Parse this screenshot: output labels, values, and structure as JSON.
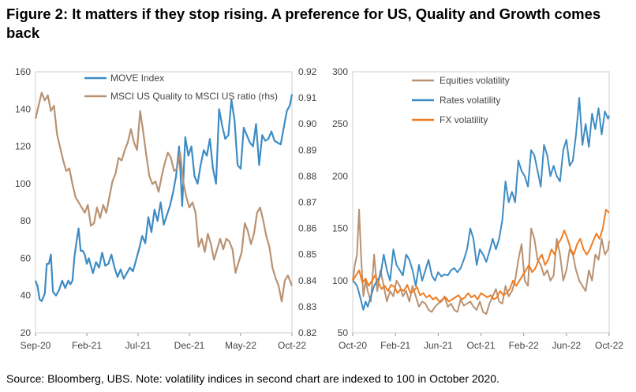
{
  "title": "Figure 2: It matters if they stop rising. A preference for US, Quality and Growth comes back",
  "source": "Source: Bloomberg, UBS. Note: volatility indices in second chart are indexed to 100 in October 2020.",
  "chart_data": [
    {
      "type": "line",
      "x_tick_labels": [
        "Sep-20",
        "Feb-21",
        "Jul-21",
        "Dec-21",
        "May-22",
        "Oct-22"
      ],
      "y_left": {
        "ylim": [
          20,
          160
        ],
        "ticks": [
          "20",
          "40",
          "60",
          "80",
          "100",
          "120",
          "140",
          "160"
        ]
      },
      "y_right": {
        "ylim": [
          0.82,
          0.92
        ],
        "ticks": [
          "0.82",
          "0.83",
          "0.84",
          "0.85",
          "0.86",
          "0.87",
          "0.88",
          "0.89",
          "0.90",
          "0.91",
          "0.92"
        ]
      },
      "legend_position": "top-left",
      "series": [
        {
          "name": "MOVE Index",
          "axis": "left",
          "color": "#3d8cc4",
          "x": [
            0,
            0.2,
            0.4,
            0.6,
            0.9,
            1.1,
            1.3,
            1.5,
            1.7,
            2.0,
            2.3,
            2.6,
            2.9,
            3.2,
            3.4,
            3.6,
            3.8,
            4.0,
            4.2,
            4.4,
            4.6,
            4.8,
            5.0,
            5.2,
            5.4,
            5.6,
            5.9,
            6.2,
            6.5,
            6.8,
            7.1,
            7.4,
            7.7,
            8.0,
            8.3,
            8.6,
            8.9,
            9.2,
            9.5,
            9.8,
            10.1,
            10.4,
            10.7,
            11.0,
            11.3,
            11.6,
            11.9,
            12.2,
            12.5,
            12.8,
            13.1,
            13.4,
            13.7,
            14.0,
            14.3,
            14.6,
            14.9,
            15.2,
            15.5,
            15.8,
            16.1,
            16.4,
            16.7,
            17.0,
            17.3,
            17.6,
            17.9,
            18.2,
            18.5,
            18.8,
            19.1,
            19.4,
            19.7,
            20.0,
            20.3,
            20.6,
            20.9,
            21.2,
            21.5,
            21.8,
            22.1,
            22.4,
            22.7,
            23.0,
            23.3,
            23.6,
            23.9,
            24.2,
            24.5,
            24.8,
            25.0
          ],
          "values": [
            48,
            45,
            38,
            37,
            41,
            57,
            57,
            62,
            42,
            40,
            43,
            48,
            44,
            48,
            46,
            48,
            61,
            69,
            76,
            64,
            64,
            62,
            57,
            60,
            56,
            52,
            58,
            55,
            63,
            56,
            57,
            62,
            55,
            50,
            54,
            49,
            52,
            55,
            53,
            59,
            65,
            72,
            68,
            82,
            74,
            86,
            80,
            90,
            78,
            83,
            88,
            95,
            104,
            120,
            88,
            125,
            115,
            120,
            104,
            100,
            110,
            118,
            115,
            124,
            108,
            100,
            140,
            131,
            124,
            126,
            145,
            134,
            110,
            108,
            130,
            126,
            122,
            120,
            132,
            110,
            126,
            123,
            124,
            128,
            123,
            122,
            121,
            130,
            139,
            142,
            148
          ]
        },
        {
          "name": "MSCI US Quality to MSCI US ratio (rhs)",
          "axis": "right",
          "color": "#b99272",
          "x": [
            0,
            0.3,
            0.6,
            0.9,
            1.2,
            1.5,
            1.8,
            2.1,
            2.4,
            2.7,
            3.0,
            3.3,
            3.6,
            3.9,
            4.2,
            4.5,
            4.8,
            5.1,
            5.4,
            5.7,
            6.0,
            6.3,
            6.6,
            6.9,
            7.2,
            7.5,
            7.8,
            8.1,
            8.4,
            8.7,
            9.0,
            9.3,
            9.6,
            9.9,
            10.2,
            10.5,
            10.8,
            11.1,
            11.4,
            11.7,
            12.0,
            12.3,
            12.6,
            12.9,
            13.2,
            13.5,
            13.8,
            14.1,
            14.4,
            14.7,
            15.0,
            15.3,
            15.6,
            15.9,
            16.2,
            16.5,
            16.8,
            17.1,
            17.4,
            17.7,
            18.0,
            18.3,
            18.6,
            18.9,
            19.2,
            19.5,
            19.8,
            20.1,
            20.4,
            20.7,
            21.0,
            21.3,
            21.6,
            21.9,
            22.2,
            22.5,
            22.8,
            23.1,
            23.4,
            23.7,
            24.0,
            24.3,
            24.6,
            25.0
          ],
          "values": [
            0.902,
            0.907,
            0.912,
            0.909,
            0.911,
            0.905,
            0.907,
            0.896,
            0.891,
            0.886,
            0.882,
            0.883,
            0.877,
            0.872,
            0.87,
            0.868,
            0.866,
            0.869,
            0.861,
            0.862,
            0.868,
            0.864,
            0.869,
            0.866,
            0.872,
            0.878,
            0.881,
            0.887,
            0.886,
            0.89,
            0.893,
            0.898,
            0.893,
            0.89,
            0.905,
            0.897,
            0.888,
            0.88,
            0.877,
            0.878,
            0.874,
            0.88,
            0.885,
            0.889,
            0.887,
            0.882,
            0.883,
            0.889,
            0.878,
            0.872,
            0.868,
            0.87,
            0.866,
            0.853,
            0.856,
            0.851,
            0.858,
            0.854,
            0.848,
            0.852,
            0.856,
            0.852,
            0.856,
            0.855,
            0.852,
            0.843,
            0.847,
            0.851,
            0.862,
            0.859,
            0.854,
            0.858,
            0.866,
            0.868,
            0.863,
            0.857,
            0.853,
            0.845,
            0.841,
            0.838,
            0.832,
            0.84,
            0.842,
            0.838
          ]
        }
      ]
    },
    {
      "type": "line",
      "x_tick_labels": [
        "Oct-20",
        "Feb-21",
        "Jun-21",
        "Oct-21",
        "Feb-22",
        "Jun-22",
        "Oct-22"
      ],
      "y": {
        "ylim": [
          50,
          300
        ],
        "ticks": [
          "50",
          "100",
          "150",
          "200",
          "250",
          "300"
        ]
      },
      "legend_position": "top-left",
      "series": [
        {
          "name": "Equities volatility",
          "color": "#b99272",
          "x": [
            0,
            0.2,
            0.4,
            0.6,
            0.8,
            1.0,
            1.2,
            1.4,
            1.7,
            2.0,
            2.3,
            2.6,
            2.9,
            3.2,
            3.5,
            3.8,
            4.1,
            4.4,
            4.7,
            5.0,
            5.3,
            5.6,
            5.9,
            6.2,
            6.5,
            6.8,
            7.1,
            7.4,
            7.7,
            8.0,
            8.3,
            8.6,
            8.9,
            9.2,
            9.5,
            9.8,
            10.1,
            10.4,
            10.7,
            11.0,
            11.3,
            11.6,
            11.9,
            12.2,
            12.5,
            12.8,
            13.1,
            13.4,
            13.7,
            14.0,
            14.3,
            14.6,
            14.9,
            15.2,
            15.5,
            15.8,
            16.1,
            16.4,
            16.7,
            17.0,
            17.3,
            17.6,
            17.9,
            18.2,
            18.5,
            18.8,
            19.1,
            19.4,
            19.7,
            20.0,
            20.3,
            20.6,
            20.9,
            21.2,
            21.5,
            21.8,
            22.1,
            22.4,
            22.7,
            23.0,
            23.3,
            23.6,
            23.9,
            24.0
          ],
          "values": [
            100,
            115,
            125,
            168,
            120,
            85,
            100,
            90,
            80,
            125,
            90,
            110,
            95,
            80,
            90,
            85,
            100,
            95,
            85,
            90,
            80,
            95,
            85,
            75,
            80,
            78,
            72,
            70,
            75,
            78,
            80,
            85,
            75,
            78,
            72,
            70,
            82,
            76,
            78,
            80,
            75,
            72,
            80,
            70,
            68,
            78,
            85,
            92,
            80,
            78,
            95,
            85,
            90,
            100,
            120,
            135,
            100,
            95,
            150,
            140,
            120,
            115,
            105,
            110,
            100,
            105,
            140,
            125,
            100,
            110,
            130,
            125,
            110,
            100,
            95,
            90,
            110,
            100,
            125,
            120,
            140,
            125,
            130,
            138
          ]
        },
        {
          "name": "Rates volatility",
          "color": "#3d8cc4",
          "x": [
            0,
            0.2,
            0.4,
            0.6,
            0.8,
            1.0,
            1.2,
            1.4,
            1.7,
            2.0,
            2.3,
            2.6,
            2.9,
            3.2,
            3.5,
            3.8,
            4.1,
            4.4,
            4.7,
            5.0,
            5.3,
            5.6,
            5.9,
            6.2,
            6.5,
            6.8,
            7.1,
            7.4,
            7.7,
            8.0,
            8.3,
            8.6,
            8.9,
            9.2,
            9.5,
            9.8,
            10.1,
            10.4,
            10.7,
            11.0,
            11.3,
            11.6,
            11.9,
            12.2,
            12.5,
            12.8,
            13.1,
            13.4,
            13.7,
            14.0,
            14.3,
            14.6,
            14.9,
            15.2,
            15.5,
            15.8,
            16.1,
            16.4,
            16.7,
            17.0,
            17.3,
            17.6,
            17.9,
            18.2,
            18.5,
            18.8,
            19.1,
            19.4,
            19.7,
            20.0,
            20.3,
            20.6,
            20.9,
            21.2,
            21.5,
            21.8,
            22.1,
            22.4,
            22.7,
            23.0,
            23.3,
            23.6,
            23.9,
            24.0
          ],
          "values": [
            100,
            98,
            95,
            88,
            80,
            72,
            80,
            75,
            85,
            95,
            100,
            105,
            125,
            110,
            100,
            130,
            115,
            110,
            105,
            125,
            120,
            110,
            95,
            115,
            100,
            110,
            120,
            105,
            100,
            108,
            104,
            106,
            105,
            110,
            112,
            108,
            112,
            120,
            130,
            150,
            140,
            115,
            130,
            125,
            118,
            128,
            140,
            130,
            140,
            158,
            195,
            175,
            185,
            175,
            215,
            205,
            200,
            190,
            225,
            220,
            205,
            190,
            230,
            220,
            200,
            210,
            200,
            195,
            225,
            235,
            210,
            215,
            240,
            275,
            230,
            250,
            228,
            260,
            245,
            265,
            240,
            262,
            255,
            258
          ]
        },
        {
          "name": "FX volatility",
          "color": "#ef7d22",
          "x": [
            0,
            0.3,
            0.6,
            0.9,
            1.2,
            1.5,
            1.8,
            2.1,
            2.4,
            2.7,
            3.0,
            3.3,
            3.6,
            3.9,
            4.2,
            4.5,
            4.8,
            5.1,
            5.4,
            5.7,
            6.0,
            6.3,
            6.6,
            6.9,
            7.2,
            7.5,
            7.8,
            8.1,
            8.4,
            8.7,
            9.0,
            9.3,
            9.6,
            9.9,
            10.2,
            10.5,
            10.8,
            11.1,
            11.4,
            11.7,
            12.0,
            12.3,
            12.6,
            12.9,
            13.2,
            13.5,
            13.8,
            14.1,
            14.4,
            14.7,
            15.0,
            15.3,
            15.6,
            15.9,
            16.2,
            16.5,
            16.8,
            17.1,
            17.4,
            17.7,
            18.0,
            18.3,
            18.6,
            18.9,
            19.2,
            19.5,
            19.8,
            20.1,
            20.4,
            20.7,
            21.0,
            21.3,
            21.6,
            21.9,
            22.2,
            22.5,
            22.8,
            23.1,
            23.4,
            23.7,
            24.0
          ],
          "values": [
            100,
            105,
            110,
            98,
            102,
            95,
            100,
            105,
            98,
            92,
            95,
            90,
            96,
            94,
            88,
            92,
            90,
            96,
            88,
            90,
            94,
            86,
            88,
            84,
            86,
            82,
            84,
            80,
            82,
            84,
            80,
            82,
            84,
            86,
            82,
            84,
            88,
            84,
            86,
            82,
            88,
            86,
            84,
            86,
            82,
            84,
            90,
            86,
            88,
            92,
            100,
            95,
            100,
            105,
            110,
            115,
            108,
            112,
            120,
            125,
            115,
            120,
            130,
            125,
            135,
            140,
            148,
            140,
            130,
            125,
            135,
            140,
            130,
            125,
            130,
            138,
            145,
            140,
            150,
            168,
            165
          ]
        }
      ]
    }
  ]
}
